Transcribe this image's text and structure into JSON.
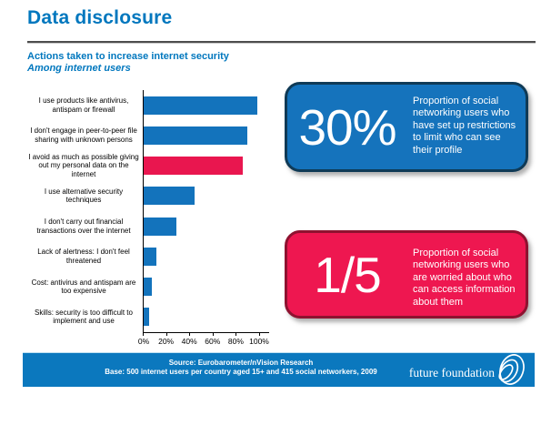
{
  "slide": {
    "title": "Data disclosure",
    "heading": "Actions taken to increase internet security",
    "subheading": "Among internet users",
    "accent_color": "#0077BE"
  },
  "chart_data": {
    "type": "bar",
    "orientation": "horizontal",
    "title": "Actions taken to increase internet security",
    "subtitle": "Among internet users",
    "categories": [
      "I use products like antivirus, antispam or firewall",
      "I don't engage in peer-to-peer file sharing with unknown persons",
      "I avoid as much as possible giving out my personal data on the internet",
      "I use alternative security techniques",
      "I don't carry out financial transactions over the internet",
      "Lack of alertness: I don't feel threatened",
      "Cost: antivirus and antispam are too expensive",
      "Skills: security is too difficult to implement and use"
    ],
    "values": [
      98,
      89,
      85,
      44,
      28,
      11,
      7,
      5
    ],
    "unit": "%",
    "xlim": [
      0,
      100
    ],
    "x_ticks": [
      "0%",
      "20%",
      "40%",
      "60%",
      "80%",
      "100%"
    ],
    "bar_color": "#1373BC",
    "highlight_color": "#E9164F",
    "highlight_index": 2,
    "grid": false,
    "legend": false
  },
  "callouts": [
    {
      "value": "30%",
      "text": "Proportion of social networking users who have set up restrictions to limit who can see their profile",
      "fill": "#1573BC",
      "border": "#0F3A56"
    },
    {
      "value": "1/5",
      "text": "Proportion of social networking users who are worried about who can access information about them",
      "fill": "#EE1750",
      "border": "#8E1230"
    }
  ],
  "footer": {
    "source_line1": "Source: Eurobarometer/nVision Research",
    "source_line2": "Base: 500 internet users per country aged 15+ and 415 social networkers, 2009",
    "logo_text": "future foundation",
    "bar_color": "#0B78BE"
  }
}
